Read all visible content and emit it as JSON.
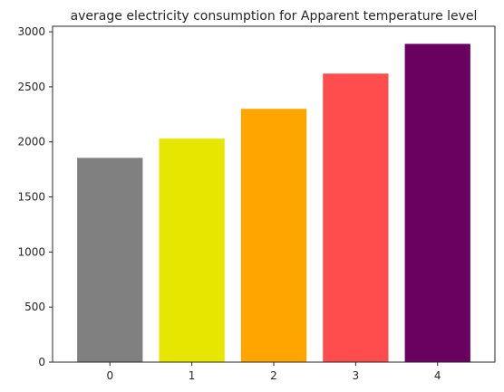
{
  "chart_data": {
    "type": "bar",
    "title": "average electricity consumption for Apparent temperature level",
    "xlabel": "",
    "ylabel": "",
    "categories": [
      "0",
      "1",
      "2",
      "3",
      "4"
    ],
    "values": [
      1855,
      2030,
      2300,
      2620,
      2890
    ],
    "colors": [
      "#808080",
      "#e6e600",
      "#ffa500",
      "#ff4c4c",
      "#6a0060"
    ],
    "ylim": [
      0,
      3050
    ],
    "yticks": [
      0,
      500,
      1000,
      1500,
      2000,
      2500,
      3000
    ],
    "grid": false,
    "legend": "none"
  }
}
